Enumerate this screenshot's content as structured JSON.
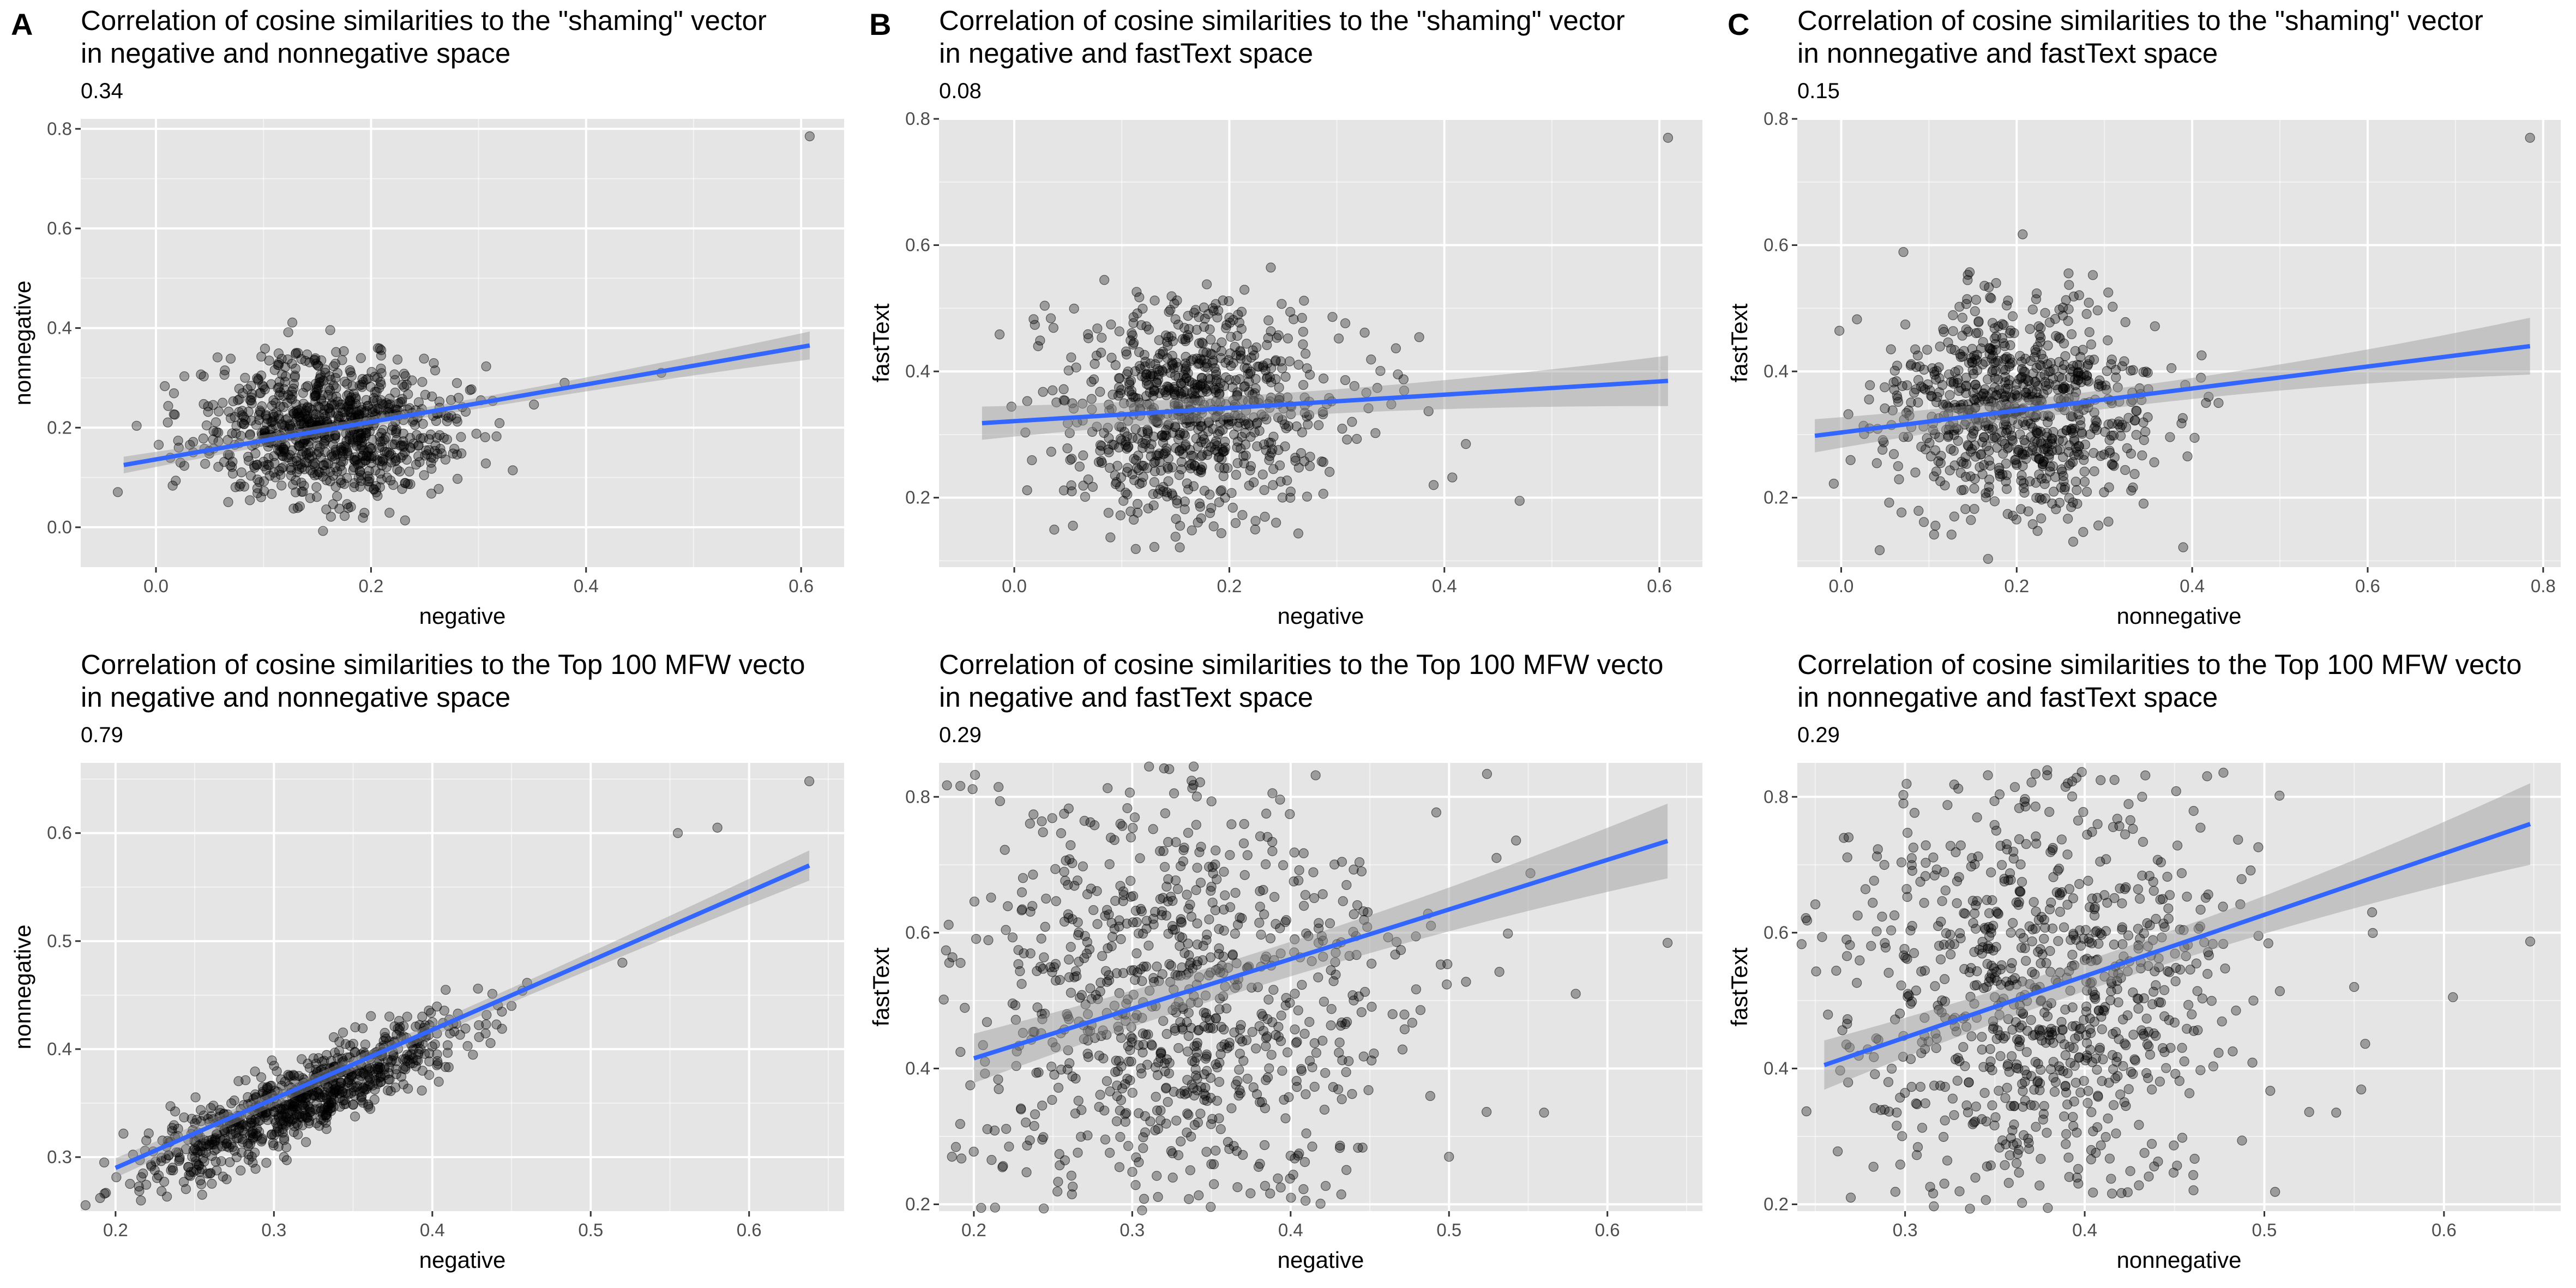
{
  "colors": {
    "panel_background": "#e5e5e5",
    "grid_major": "#ffffff",
    "point": "#000000",
    "regression_line": "#3366ff",
    "confidence_band": "#999999"
  },
  "chart_data": [
    {
      "type": "scatter",
      "panel_label": "A",
      "title_line1": "Correlation of cosine similarities to the \"shaming\" vector",
      "title_line2": "in negative and nonnegative space",
      "subtitle": "0.34",
      "xlabel": "negative",
      "ylabel": "nonnegative",
      "xlim": [
        -0.07,
        0.64
      ],
      "ylim": [
        -0.08,
        0.82
      ],
      "xticks": [
        0.0,
        0.2,
        0.4,
        0.6
      ],
      "xtick_labels": [
        "0.0",
        "0.2",
        "0.4",
        "0.6"
      ],
      "yticks": [
        0.0,
        0.2,
        0.4,
        0.6,
        0.8
      ],
      "ytick_labels": [
        "0.0",
        "0.2",
        "0.4",
        "0.6",
        "0.8"
      ],
      "grid": true,
      "cloud": {
        "x_center": 0.16,
        "x_sd": 0.06,
        "y_center": 0.2,
        "y_sd": 0.07,
        "n": 900
      },
      "outliers": [
        [
          0.608,
          0.785
        ],
        [
          0.47,
          0.31
        ],
        [
          0.38,
          0.29
        ]
      ],
      "regression_line": {
        "x1": -0.03,
        "y1": 0.125,
        "x2": 0.608,
        "y2": 0.365
      },
      "confidence_band_halfwidth": [
        0.01,
        0.028
      ]
    },
    {
      "type": "scatter",
      "panel_label": "B",
      "title_line1": "Correlation of cosine similarities to the \"shaming\" vector",
      "title_line2": "in negative and fastText space",
      "subtitle": "0.08",
      "xlabel": "negative",
      "ylabel": "fastText",
      "xlim": [
        -0.07,
        0.64
      ],
      "ylim": [
        0.09,
        0.8
      ],
      "xticks": [
        0.0,
        0.2,
        0.4,
        0.6
      ],
      "xtick_labels": [
        "0.0",
        "0.2",
        "0.4",
        "0.6"
      ],
      "yticks": [
        0.2,
        0.4,
        0.6,
        0.8
      ],
      "ytick_labels": [
        "0.2",
        "0.4",
        "0.6",
        "0.8"
      ],
      "grid": true,
      "cloud": {
        "x_center": 0.17,
        "x_sd": 0.065,
        "y_center": 0.34,
        "y_sd": 0.085,
        "n": 800
      },
      "outliers": [
        [
          0.608,
          0.77
        ],
        [
          0.47,
          0.195
        ],
        [
          0.39,
          0.22
        ],
        [
          0.42,
          0.285
        ]
      ],
      "regression_line": {
        "x1": -0.03,
        "y1": 0.318,
        "x2": 0.608,
        "y2": 0.385
      },
      "confidence_band_halfwidth": [
        0.018,
        0.04
      ]
    },
    {
      "type": "scatter",
      "panel_label": "C",
      "title_line1": "Correlation of cosine similarities to the \"shaming\" vector",
      "title_line2": "in nonnegative and fastText space",
      "subtitle": "0.15",
      "xlabel": "nonnegative",
      "ylabel": "fastText",
      "xlim": [
        -0.05,
        0.82
      ],
      "ylim": [
        0.09,
        0.8
      ],
      "xticks": [
        0.0,
        0.2,
        0.4,
        0.6,
        0.8
      ],
      "xtick_labels": [
        "0.0",
        "0.2",
        "0.4",
        "0.6",
        "0.8"
      ],
      "yticks": [
        0.2,
        0.4,
        0.6,
        0.8
      ],
      "ytick_labels": [
        "0.2",
        "0.4",
        "0.6",
        "0.8"
      ],
      "grid": true,
      "cloud": {
        "x_center": 0.2,
        "x_sd": 0.075,
        "y_center": 0.34,
        "y_sd": 0.085,
        "n": 800
      },
      "outliers": [
        [
          0.785,
          0.77
        ],
        [
          0.43,
          0.35
        ],
        [
          0.41,
          0.39
        ]
      ],
      "regression_line": {
        "x1": -0.03,
        "y1": 0.298,
        "x2": 0.785,
        "y2": 0.44
      },
      "confidence_band_halfwidth": [
        0.015,
        0.045
      ]
    },
    {
      "type": "scatter",
      "panel_label": "",
      "title_line1": "Correlation of cosine similarities to the Top 100 MFW vecto",
      "title_line2": "in negative and nonnegative space",
      "subtitle": "0.79",
      "xlabel": "negative",
      "ylabel": "nonnegative",
      "xlim": [
        0.178,
        0.66
      ],
      "ylim": [
        0.25,
        0.665
      ],
      "xticks": [
        0.2,
        0.3,
        0.4,
        0.5,
        0.6
      ],
      "xtick_labels": [
        "0.2",
        "0.3",
        "0.4",
        "0.5",
        "0.6"
      ],
      "yticks": [
        0.3,
        0.4,
        0.5,
        0.6
      ],
      "ytick_labels": [
        "0.3",
        "0.4",
        "0.5",
        "0.6"
      ],
      "grid": true,
      "cloud": {
        "x_center": 0.32,
        "x_sd": 0.05,
        "y_center": 0.355,
        "y_sd": 0.018,
        "n": 800,
        "slope": 0.64
      },
      "outliers": [
        [
          0.638,
          0.648
        ],
        [
          0.58,
          0.605
        ],
        [
          0.555,
          0.6
        ],
        [
          0.52,
          0.48
        ],
        [
          0.45,
          0.44
        ]
      ],
      "regression_line": {
        "x1": 0.2,
        "y1": 0.29,
        "x2": 0.638,
        "y2": 0.57
      },
      "confidence_band_halfwidth": [
        0.006,
        0.014
      ]
    },
    {
      "type": "scatter",
      "panel_label": "",
      "title_line1": "Correlation of cosine similarities to the Top 100 MFW vecto",
      "title_line2": "in negative and fastText space",
      "subtitle": "0.29",
      "xlabel": "negative",
      "ylabel": "fastText",
      "xlim": [
        0.178,
        0.66
      ],
      "ylim": [
        0.19,
        0.85
      ],
      "xticks": [
        0.2,
        0.3,
        0.4,
        0.5,
        0.6
      ],
      "xtick_labels": [
        "0.2",
        "0.3",
        "0.4",
        "0.5",
        "0.6"
      ],
      "yticks": [
        0.2,
        0.4,
        0.6,
        0.8
      ],
      "ytick_labels": [
        "0.2",
        "0.4",
        "0.6",
        "0.8"
      ],
      "grid": true,
      "cloud": {
        "x_center": 0.33,
        "x_sd": 0.07,
        "y_center": 0.5,
        "y_sd": 0.17,
        "n": 900
      },
      "outliers": [
        [
          0.638,
          0.585
        ],
        [
          0.56,
          0.335
        ],
        [
          0.58,
          0.51
        ],
        [
          0.53,
          0.71
        ],
        [
          0.5,
          0.27
        ]
      ],
      "regression_line": {
        "x1": 0.2,
        "y1": 0.415,
        "x2": 0.638,
        "y2": 0.735
      },
      "confidence_band_halfwidth": [
        0.025,
        0.055
      ]
    },
    {
      "type": "scatter",
      "panel_label": "",
      "title_line1": "Correlation of cosine similarities to the Top 100 MFW vecto",
      "title_line2": "in nonnegative and fastText space",
      "subtitle": "0.29",
      "xlabel": "nonnegative",
      "ylabel": "fastText",
      "xlim": [
        0.24,
        0.665
      ],
      "ylim": [
        0.19,
        0.85
      ],
      "xticks": [
        0.3,
        0.4,
        0.5,
        0.6
      ],
      "xtick_labels": [
        "0.3",
        "0.4",
        "0.5",
        "0.6"
      ],
      "yticks": [
        0.2,
        0.4,
        0.6,
        0.8
      ],
      "ytick_labels": [
        "0.2",
        "0.4",
        "0.6",
        "0.8"
      ],
      "grid": true,
      "cloud": {
        "x_center": 0.375,
        "x_sd": 0.055,
        "y_center": 0.5,
        "y_sd": 0.17,
        "n": 900
      },
      "outliers": [
        [
          0.648,
          0.587
        ],
        [
          0.605,
          0.505
        ],
        [
          0.56,
          0.63
        ],
        [
          0.54,
          0.335
        ],
        [
          0.55,
          0.52
        ]
      ],
      "regression_line": {
        "x1": 0.255,
        "y1": 0.405,
        "x2": 0.648,
        "y2": 0.76
      },
      "confidence_band_halfwidth": [
        0.022,
        0.06
      ]
    }
  ]
}
